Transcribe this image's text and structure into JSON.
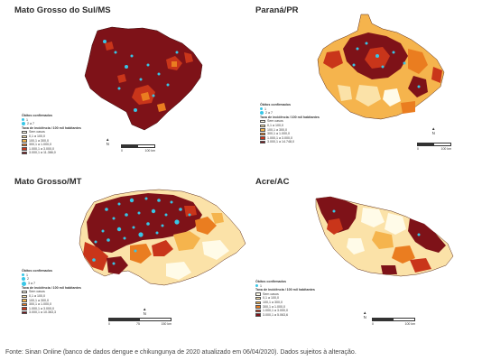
{
  "colors": {
    "sem_casos": "#fffbe8",
    "c1": "#fbe2a8",
    "c2": "#f5b44d",
    "c3": "#ea7d20",
    "c4": "#c9351a",
    "c5": "#7e1218",
    "obitos": "#38c6e6",
    "border": "#5a2a18"
  },
  "panels": {
    "ms": {
      "title": "Mato Grosso do Sul/MS",
      "legend": {
        "obitos_title": "Óbitos confirmados",
        "obitos": [
          "1",
          "2 a 7"
        ],
        "incidence_title": "Taxa de incidência / 100 mil habitantes",
        "classes": [
          "Sem casos",
          "0,1 a 100,0",
          "100,1 a 300,0",
          "300,1 a 1.000,0",
          "1.000,1 a 3.000,0",
          "3.000,1 a 11.366,0"
        ]
      },
      "scale": {
        "left": "0",
        "right": "100 km"
      }
    },
    "pr": {
      "title": "Paraná/PR",
      "legend": {
        "obitos_title": "Óbitos confirmados",
        "obitos": [
          "1",
          "2 a 7"
        ],
        "incidence_title": "Taxa de incidência / 100 mil habitantes",
        "classes": [
          "Sem casos",
          "0,1 a 100,0",
          "100,1 a 300,0",
          "300,1 a 1.000,0",
          "1.000,1 a 3.000,0",
          "3.000,1 a 14.748,0"
        ]
      },
      "scale": {
        "left": "0",
        "right": "100 km"
      }
    },
    "mt": {
      "title": "Mato Grosso/MT",
      "legend": {
        "obitos_title": "Óbitos confirmados",
        "obitos": [
          "1",
          "2",
          "3 a 7"
        ],
        "incidence_title": "Taxa de incidência / 100 mil habitantes",
        "classes": [
          "Sem casos",
          "0,1 a 100,0",
          "100,1 a 300,0",
          "300,1 a 1.000,0",
          "1.000,1 a 3.000,0",
          "3.000,1 a 10.363,3"
        ]
      },
      "scale": {
        "left": "0",
        "mid": "75",
        "right": "150 km"
      }
    },
    "ac": {
      "title": "Acre/AC",
      "legend": {
        "obitos_title": "Óbitos confirmados",
        "obitos": [
          "1"
        ],
        "incidence_title": "Taxa de incidência / 100 mil habitantes",
        "classes": [
          "Sem casos",
          "0,1 a 100,0",
          "100,1 a 300,0",
          "300,1 a 1.000,0",
          "1.000,1 a 3.000,0",
          "3.000,1 a 5.063,6"
        ]
      },
      "scale": {
        "left": "0",
        "right": "100 km"
      }
    }
  },
  "source": "Fonte: Sinan Online (banco de dados dengue e chikungunya de 2020 atualizado em 06/04/2020). Dados sujeitos à alteração."
}
